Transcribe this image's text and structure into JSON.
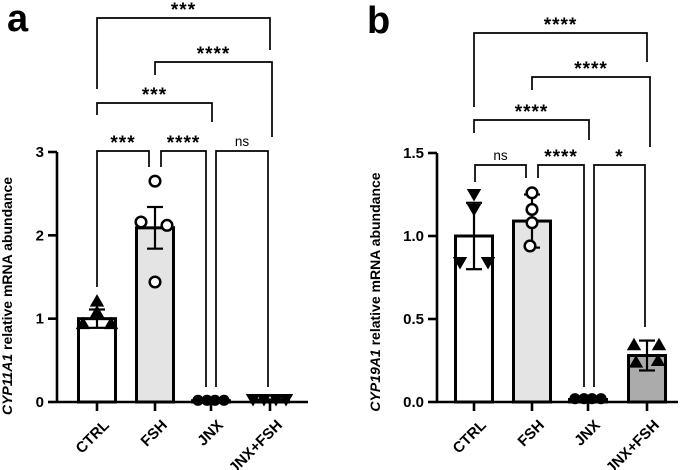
{
  "figure": {
    "background": "#FFFFFF",
    "panels": [
      {
        "letter": "a",
        "y_axis_title_italic": "CYP11A1",
        "y_axis_title_rest": " relative mRNA abundance"
      },
      {
        "letter": "b",
        "y_axis_title_italic": "CYP19A1",
        "y_axis_title_rest": " relative mRNA abundance"
      }
    ],
    "colors": {
      "axis": "#000000",
      "bar_border": "#000000",
      "ctrl_fill": "#FFFFFF",
      "fsh_fill": "#E4E4E4",
      "jnx_fill": "#E4E4E4",
      "jnx_fsh_fill": "#ABABAB"
    }
  },
  "chart_data": [
    {
      "type": "bar",
      "panel": "a",
      "title": "",
      "ylabel": "CYP11A1 relative mRNA abundance",
      "ylabel_italic_part": "CYP11A1",
      "categories": [
        "CTRL",
        "FSH",
        "JNX",
        "JNX+FSH"
      ],
      "ylim": [
        0,
        3
      ],
      "yticks": [
        0,
        1,
        2,
        3
      ],
      "ytick_labels": [
        "0",
        "1",
        "2",
        "3"
      ],
      "grid": false,
      "legend": false,
      "bars": [
        {
          "category": "CTRL",
          "mean": 1.0,
          "sd": 0.11,
          "fill": "#FFFFFF",
          "marker": "triangle-up-filled",
          "points": [
            {
              "dx": 0,
              "value": 1.21
            },
            {
              "dx": 0,
              "value": 1.08
            },
            {
              "dx": -14,
              "value": 0.94
            },
            {
              "dx": 14,
              "value": 0.94
            }
          ]
        },
        {
          "category": "FSH",
          "mean": 2.09,
          "sd": 0.25,
          "fill": "#E4E4E4",
          "marker": "circle-open",
          "points": [
            {
              "dx": 0,
              "value": 2.65
            },
            {
              "dx": -14,
              "value": 2.16
            },
            {
              "dx": 12,
              "value": 2.12
            },
            {
              "dx": 0,
              "value": 1.44
            }
          ]
        },
        {
          "category": "JNX",
          "mean": 0.015,
          "sd": 0,
          "fill": "#E4E4E4",
          "marker": "circle-filled",
          "points": [
            {
              "dx": -13,
              "value": 0.02
            },
            {
              "dx": -4,
              "value": 0.02
            },
            {
              "dx": 4,
              "value": 0.02
            },
            {
              "dx": 13,
              "value": 0.02
            }
          ]
        },
        {
          "category": "JNX+FSH",
          "mean": 0.025,
          "sd": 0.012,
          "fill": "#ABABAB",
          "marker": "triangle-down-filled",
          "points": [
            {
              "dx": -17,
              "value": 0.03
            },
            {
              "dx": -6,
              "value": 0.03
            },
            {
              "dx": 6,
              "value": 0.03
            },
            {
              "dx": 16,
              "value": 0.03
            }
          ]
        }
      ],
      "comparisons": [
        {
          "group1": "CTRL",
          "group2": "JNX+FSH",
          "label": "***"
        },
        {
          "group1": "FSH",
          "group2": "JNX+FSH",
          "label": "****"
        },
        {
          "group1": "CTRL",
          "group2": "JNX",
          "label": "***"
        },
        {
          "group1": "CTRL",
          "group2": "FSH",
          "label": "***"
        },
        {
          "group1": "FSH",
          "group2": "JNX",
          "label": "****"
        },
        {
          "group1": "JNX",
          "group2": "JNX+FSH",
          "label": "ns"
        }
      ]
    },
    {
      "type": "bar",
      "panel": "b",
      "title": "",
      "ylabel": "CYP19A1 relative mRNA abundance",
      "ylabel_italic_part": "CYP19A1",
      "categories": [
        "CTRL",
        "FSH",
        "JNX",
        "JNX+FSH"
      ],
      "ylim": [
        0,
        1.5
      ],
      "yticks": [
        0,
        0.5,
        1.0,
        1.5
      ],
      "ytick_labels": [
        "0.0",
        "0.5",
        "1.0",
        "1.5"
      ],
      "grid": false,
      "legend": false,
      "bars": [
        {
          "category": "CTRL",
          "mean": 1.0,
          "sd": 0.2,
          "fill": "#FFFFFF",
          "marker": "triangle-down-filled",
          "points": [
            {
              "dx": 0,
              "value": 1.25
            },
            {
              "dx": 0,
              "value": 1.16
            },
            {
              "dx": -14,
              "value": 0.84
            },
            {
              "dx": 14,
              "value": 0.84
            }
          ]
        },
        {
          "category": "FSH",
          "mean": 1.09,
          "sd": 0.16,
          "fill": "#E4E4E4",
          "marker": "circle-open",
          "points": [
            {
              "dx": 0,
              "value": 1.26
            },
            {
              "dx": 0,
              "value": 1.16
            },
            {
              "dx": 0,
              "value": 1.08
            },
            {
              "dx": -2,
              "value": 0.94
            }
          ]
        },
        {
          "category": "JNX",
          "mean": 0.015,
          "sd": 0,
          "fill": "#E4E4E4",
          "marker": "circle-filled",
          "points": [
            {
              "dx": -13,
              "value": 0.02
            },
            {
              "dx": -4,
              "value": 0.02
            },
            {
              "dx": 4,
              "value": 0.02
            },
            {
              "dx": 13,
              "value": 0.02
            }
          ]
        },
        {
          "category": "JNX+FSH",
          "mean": 0.28,
          "sd": 0.09,
          "fill": "#ABABAB",
          "marker": "triangle-up-filled",
          "points": [
            {
              "dx": -13,
              "value": 0.345
            },
            {
              "dx": 12,
              "value": 0.345
            },
            {
              "dx": -11,
              "value": 0.24
            },
            {
              "dx": 11,
              "value": 0.25
            }
          ]
        }
      ],
      "comparisons": [
        {
          "group1": "CTRL",
          "group2": "JNX+FSH",
          "label": "****"
        },
        {
          "group1": "FSH",
          "group2": "JNX+FSH",
          "label": "****"
        },
        {
          "group1": "CTRL",
          "group2": "JNX",
          "label": "****"
        },
        {
          "group1": "CTRL",
          "group2": "FSH",
          "label": "ns"
        },
        {
          "group1": "FSH",
          "group2": "JNX",
          "label": "****"
        },
        {
          "group1": "JNX",
          "group2": "JNX+FSH",
          "label": "*"
        }
      ]
    }
  ]
}
